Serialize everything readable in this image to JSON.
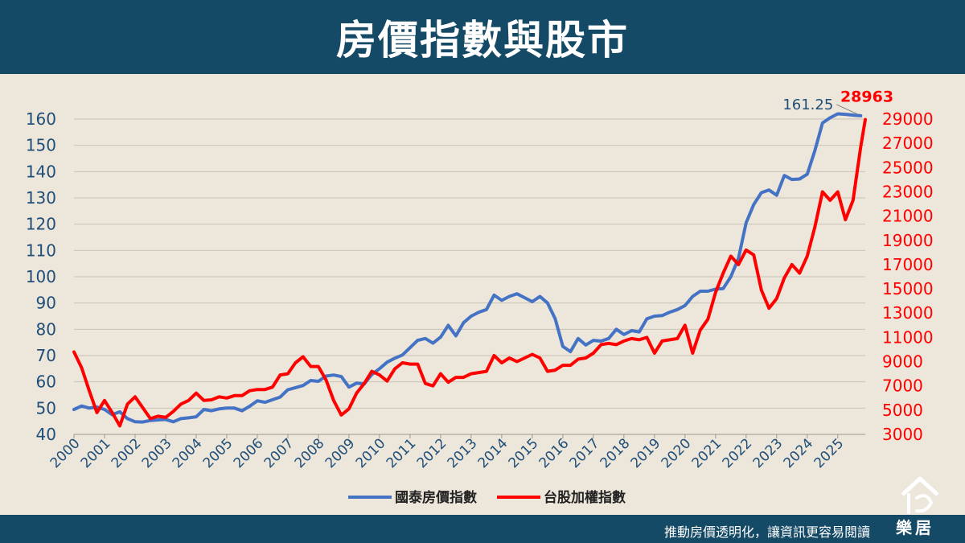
{
  "header": {
    "title": "房價指數與股市"
  },
  "footer": {
    "slogan": "推動房價透明化，讓資訊更容易閱讀"
  },
  "logo": {
    "text": "樂居"
  },
  "colors": {
    "house_series": "#4472c4",
    "stock_series": "#ff0000",
    "header_bg": "#154a66",
    "plot_bg": "#ede6da",
    "left_axis": "#1f4e79"
  },
  "chart_data": {
    "type": "line",
    "title": "",
    "xlabel": "",
    "ylabel_left": "",
    "ylabel_right": "",
    "x_start": 2000,
    "x_end": 2025.9,
    "x_ticks": [
      "2000",
      "2001",
      "2002",
      "2003",
      "2004",
      "2005",
      "2006",
      "2007",
      "2008",
      "2009",
      "2010",
      "2011",
      "2012",
      "2013",
      "2014",
      "2015",
      "2016",
      "2017",
      "2018",
      "2019",
      "2020",
      "2021",
      "2022",
      "2023",
      "2024",
      "2025"
    ],
    "y_left_ticks": [
      40,
      50,
      60,
      70,
      80,
      90,
      100,
      110,
      120,
      130,
      140,
      150,
      160
    ],
    "y_left_range": [
      40,
      160
    ],
    "y_right_ticks": [
      3000,
      5000,
      7000,
      9000,
      11000,
      13000,
      15000,
      17000,
      19000,
      21000,
      23000,
      25000,
      27000,
      29000
    ],
    "y_right_range": [
      3000,
      29000
    ],
    "grid": true,
    "legend_position": "bottom-center",
    "annotations": [
      {
        "text": "161.25",
        "series": "國泰房價指數"
      },
      {
        "text": "28963",
        "series": "台股加權指數"
      }
    ],
    "series": [
      {
        "name": "國泰房價指數",
        "axis": "left",
        "points": [
          [
            2000.0,
            49.5
          ],
          [
            2000.25,
            50.8
          ],
          [
            2000.5,
            50.0
          ],
          [
            2000.75,
            50.4
          ],
          [
            2001.0,
            49.5
          ],
          [
            2001.25,
            47.5
          ],
          [
            2001.5,
            48.6
          ],
          [
            2001.75,
            46.0
          ],
          [
            2002.0,
            44.8
          ],
          [
            2002.25,
            44.7
          ],
          [
            2002.5,
            45.3
          ],
          [
            2002.75,
            45.5
          ],
          [
            2003.0,
            45.7
          ],
          [
            2003.25,
            44.8
          ],
          [
            2003.5,
            46.0
          ],
          [
            2003.75,
            46.3
          ],
          [
            2004.0,
            46.7
          ],
          [
            2004.25,
            49.5
          ],
          [
            2004.5,
            49.0
          ],
          [
            2004.75,
            49.7
          ],
          [
            2005.0,
            50.0
          ],
          [
            2005.25,
            50.0
          ],
          [
            2005.5,
            49.0
          ],
          [
            2005.75,
            50.7
          ],
          [
            2006.0,
            52.8
          ],
          [
            2006.25,
            52.2
          ],
          [
            2006.5,
            53.2
          ],
          [
            2006.75,
            54.2
          ],
          [
            2007.0,
            57.0
          ],
          [
            2007.25,
            57.8
          ],
          [
            2007.5,
            58.6
          ],
          [
            2007.75,
            60.5
          ],
          [
            2008.0,
            60.2
          ],
          [
            2008.25,
            62.2
          ],
          [
            2008.5,
            62.6
          ],
          [
            2008.75,
            62.0
          ],
          [
            2009.0,
            58.0
          ],
          [
            2009.25,
            59.5
          ],
          [
            2009.5,
            59.2
          ],
          [
            2009.75,
            62.8
          ],
          [
            2010.0,
            65.0
          ],
          [
            2010.25,
            67.5
          ],
          [
            2010.5,
            69.0
          ],
          [
            2010.75,
            70.2
          ],
          [
            2011.0,
            73.0
          ],
          [
            2011.25,
            75.8
          ],
          [
            2011.5,
            76.5
          ],
          [
            2011.75,
            74.7
          ],
          [
            2012.0,
            77.0
          ],
          [
            2012.25,
            81.5
          ],
          [
            2012.5,
            77.5
          ],
          [
            2012.75,
            82.5
          ],
          [
            2013.0,
            85.0
          ],
          [
            2013.25,
            86.5
          ],
          [
            2013.5,
            87.5
          ],
          [
            2013.75,
            93.0
          ],
          [
            2014.0,
            91.0
          ],
          [
            2014.25,
            92.5
          ],
          [
            2014.5,
            93.5
          ],
          [
            2014.75,
            92.0
          ],
          [
            2015.0,
            90.5
          ],
          [
            2015.25,
            92.5
          ],
          [
            2015.5,
            90.0
          ],
          [
            2015.75,
            84.0
          ],
          [
            2016.0,
            73.5
          ],
          [
            2016.25,
            71.5
          ],
          [
            2016.5,
            76.5
          ],
          [
            2016.75,
            74.0
          ],
          [
            2017.0,
            75.8
          ],
          [
            2017.25,
            75.5
          ],
          [
            2017.5,
            76.5
          ],
          [
            2017.75,
            80.0
          ],
          [
            2018.0,
            78.0
          ],
          [
            2018.25,
            79.5
          ],
          [
            2018.5,
            79.0
          ],
          [
            2018.75,
            84.0
          ],
          [
            2019.0,
            85.0
          ],
          [
            2019.25,
            85.2
          ],
          [
            2019.5,
            86.5
          ],
          [
            2019.75,
            87.5
          ],
          [
            2020.0,
            89.0
          ],
          [
            2020.25,
            92.5
          ],
          [
            2020.5,
            94.5
          ],
          [
            2020.75,
            94.5
          ],
          [
            2021.0,
            95.3
          ],
          [
            2021.25,
            95.5
          ],
          [
            2021.5,
            100.0
          ],
          [
            2021.75,
            107.0
          ],
          [
            2022.0,
            120.5
          ],
          [
            2022.25,
            127.5
          ],
          [
            2022.5,
            132.0
          ],
          [
            2022.75,
            133.0
          ],
          [
            2023.0,
            131.0
          ],
          [
            2023.25,
            138.5
          ],
          [
            2023.5,
            137.0
          ],
          [
            2023.75,
            137.2
          ],
          [
            2024.0,
            139.0
          ],
          [
            2024.25,
            148.0
          ],
          [
            2024.5,
            158.5
          ],
          [
            2024.75,
            160.5
          ],
          [
            2025.0,
            162.0
          ],
          [
            2025.25,
            161.8
          ],
          [
            2025.5,
            161.5
          ],
          [
            2025.75,
            161.25
          ]
        ]
      },
      {
        "name": "台股加權指數",
        "axis": "right",
        "points": [
          [
            2000.0,
            9800
          ],
          [
            2000.25,
            8500
          ],
          [
            2000.5,
            6600
          ],
          [
            2000.75,
            4800
          ],
          [
            2001.0,
            5800
          ],
          [
            2001.25,
            4800
          ],
          [
            2001.5,
            3700
          ],
          [
            2001.75,
            5500
          ],
          [
            2002.0,
            6100
          ],
          [
            2002.25,
            5200
          ],
          [
            2002.5,
            4300
          ],
          [
            2002.75,
            4500
          ],
          [
            2003.0,
            4400
          ],
          [
            2003.25,
            4900
          ],
          [
            2003.5,
            5500
          ],
          [
            2003.75,
            5800
          ],
          [
            2004.0,
            6400
          ],
          [
            2004.25,
            5800
          ],
          [
            2004.5,
            5850
          ],
          [
            2004.75,
            6100
          ],
          [
            2005.0,
            6000
          ],
          [
            2005.25,
            6200
          ],
          [
            2005.5,
            6200
          ],
          [
            2005.75,
            6600
          ],
          [
            2006.0,
            6700
          ],
          [
            2006.25,
            6700
          ],
          [
            2006.5,
            6900
          ],
          [
            2006.75,
            7900
          ],
          [
            2007.0,
            8000
          ],
          [
            2007.25,
            8900
          ],
          [
            2007.5,
            9400
          ],
          [
            2007.75,
            8600
          ],
          [
            2008.0,
            8600
          ],
          [
            2008.25,
            7500
          ],
          [
            2008.5,
            5800
          ],
          [
            2008.75,
            4600
          ],
          [
            2009.0,
            5100
          ],
          [
            2009.25,
            6400
          ],
          [
            2009.5,
            7200
          ],
          [
            2009.75,
            8200
          ],
          [
            2010.0,
            7900
          ],
          [
            2010.25,
            7400
          ],
          [
            2010.5,
            8400
          ],
          [
            2010.75,
            8900
          ],
          [
            2011.0,
            8800
          ],
          [
            2011.25,
            8800
          ],
          [
            2011.5,
            7200
          ],
          [
            2011.75,
            7000
          ],
          [
            2012.0,
            8000
          ],
          [
            2012.25,
            7300
          ],
          [
            2012.5,
            7700
          ],
          [
            2012.75,
            7700
          ],
          [
            2013.0,
            8000
          ],
          [
            2013.25,
            8100
          ],
          [
            2013.5,
            8200
          ],
          [
            2013.75,
            9500
          ],
          [
            2014.0,
            8900
          ],
          [
            2014.25,
            9300
          ],
          [
            2014.5,
            9000
          ],
          [
            2014.75,
            9300
          ],
          [
            2015.0,
            9600
          ],
          [
            2015.25,
            9300
          ],
          [
            2015.5,
            8200
          ],
          [
            2015.75,
            8300
          ],
          [
            2016.0,
            8700
          ],
          [
            2016.25,
            8700
          ],
          [
            2016.5,
            9200
          ],
          [
            2016.75,
            9300
          ],
          [
            2017.0,
            9700
          ],
          [
            2017.25,
            10400
          ],
          [
            2017.5,
            10500
          ],
          [
            2017.75,
            10400
          ],
          [
            2018.0,
            10700
          ],
          [
            2018.25,
            10900
          ],
          [
            2018.5,
            10800
          ],
          [
            2018.75,
            11000
          ],
          [
            2019.0,
            9700
          ],
          [
            2019.25,
            10700
          ],
          [
            2019.5,
            10800
          ],
          [
            2019.75,
            10900
          ],
          [
            2020.0,
            12000
          ],
          [
            2020.25,
            9700
          ],
          [
            2020.5,
            11600
          ],
          [
            2020.75,
            12500
          ],
          [
            2021.0,
            14700
          ],
          [
            2021.25,
            16300
          ],
          [
            2021.5,
            17700
          ],
          [
            2021.75,
            17000
          ],
          [
            2022.0,
            18200
          ],
          [
            2022.25,
            17800
          ],
          [
            2022.5,
            14900
          ],
          [
            2022.75,
            13400
          ],
          [
            2023.0,
            14200
          ],
          [
            2023.25,
            15900
          ],
          [
            2023.5,
            17000
          ],
          [
            2023.75,
            16300
          ],
          [
            2024.0,
            17700
          ],
          [
            2024.25,
            20100
          ],
          [
            2024.5,
            23000
          ],
          [
            2024.75,
            22300
          ],
          [
            2025.0,
            23000
          ],
          [
            2025.25,
            20700
          ],
          [
            2025.5,
            22300
          ],
          [
            2025.75,
            26700
          ],
          [
            2025.9,
            28963
          ]
        ]
      }
    ]
  }
}
